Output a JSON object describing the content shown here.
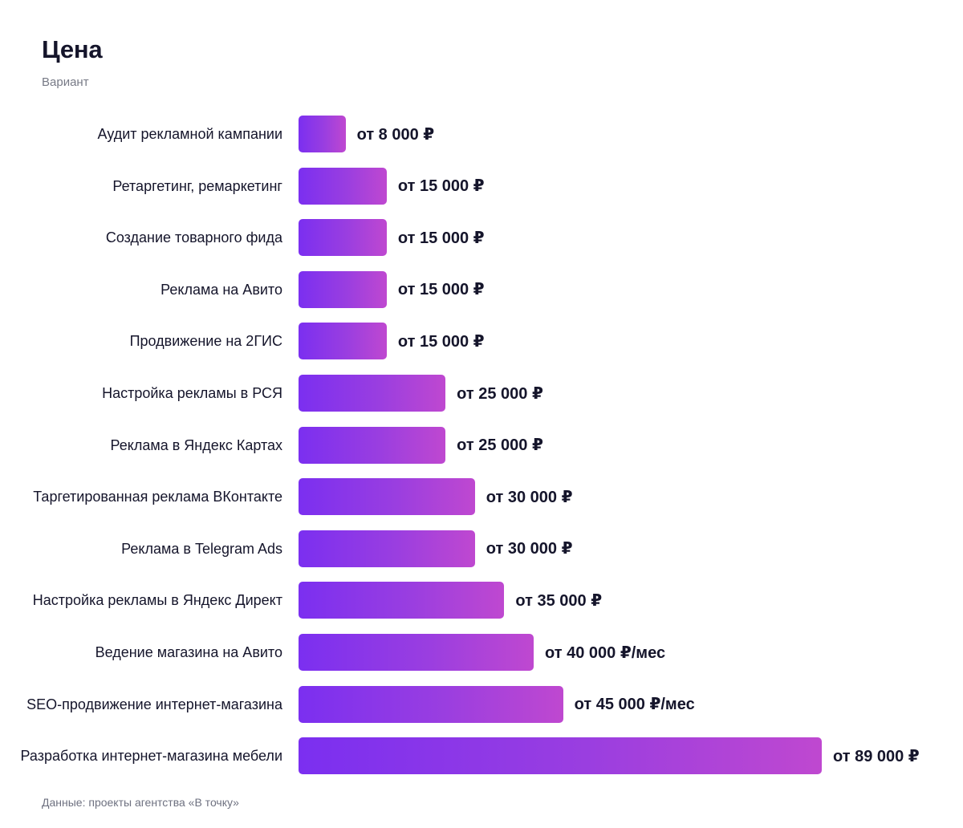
{
  "chart_data": {
    "type": "bar",
    "orientation": "horizontal",
    "title": "Цена",
    "subtitle": "Вариант",
    "source": "Данные: проекты агентства «В точку»",
    "categories": [
      "Аудит рекламной кампании",
      "Ретаргетинг, ремаркетинг",
      "Создание товарного фида",
      "Реклама на Авито",
      "Продвижение на 2ГИС",
      "Настройка рекламы в РСЯ",
      "Реклама в Яндекс Картах",
      "Таргетированная реклама ВКонтакте",
      "Реклама в Telegram Ads",
      "Настройка рекламы в Яндекс Директ",
      "Ведение магазина на Авито",
      "SEO-продвижение интернет-магазина",
      "Разработка интернет-магазина мебели"
    ],
    "values": [
      8000,
      15000,
      15000,
      15000,
      15000,
      25000,
      25000,
      30000,
      30000,
      35000,
      40000,
      45000,
      89000
    ],
    "value_labels": [
      "от 8 000 ₽",
      "от 15 000 ₽",
      "от 15 000 ₽",
      "от 15 000 ₽",
      "от 15 000 ₽",
      "от 25 000 ₽",
      "от 25 000 ₽",
      "от 30 000 ₽",
      "от 30 000 ₽",
      "от 35 000 ₽",
      "от 40 000 ₽/мес",
      "от 45 000 ₽/мес",
      "от 89 000 ₽"
    ],
    "xlim": [
      0,
      89000
    ],
    "grid": false,
    "colors": {
      "bar_start": "#7b2ff0",
      "bar_end": "#bf48d0"
    }
  }
}
